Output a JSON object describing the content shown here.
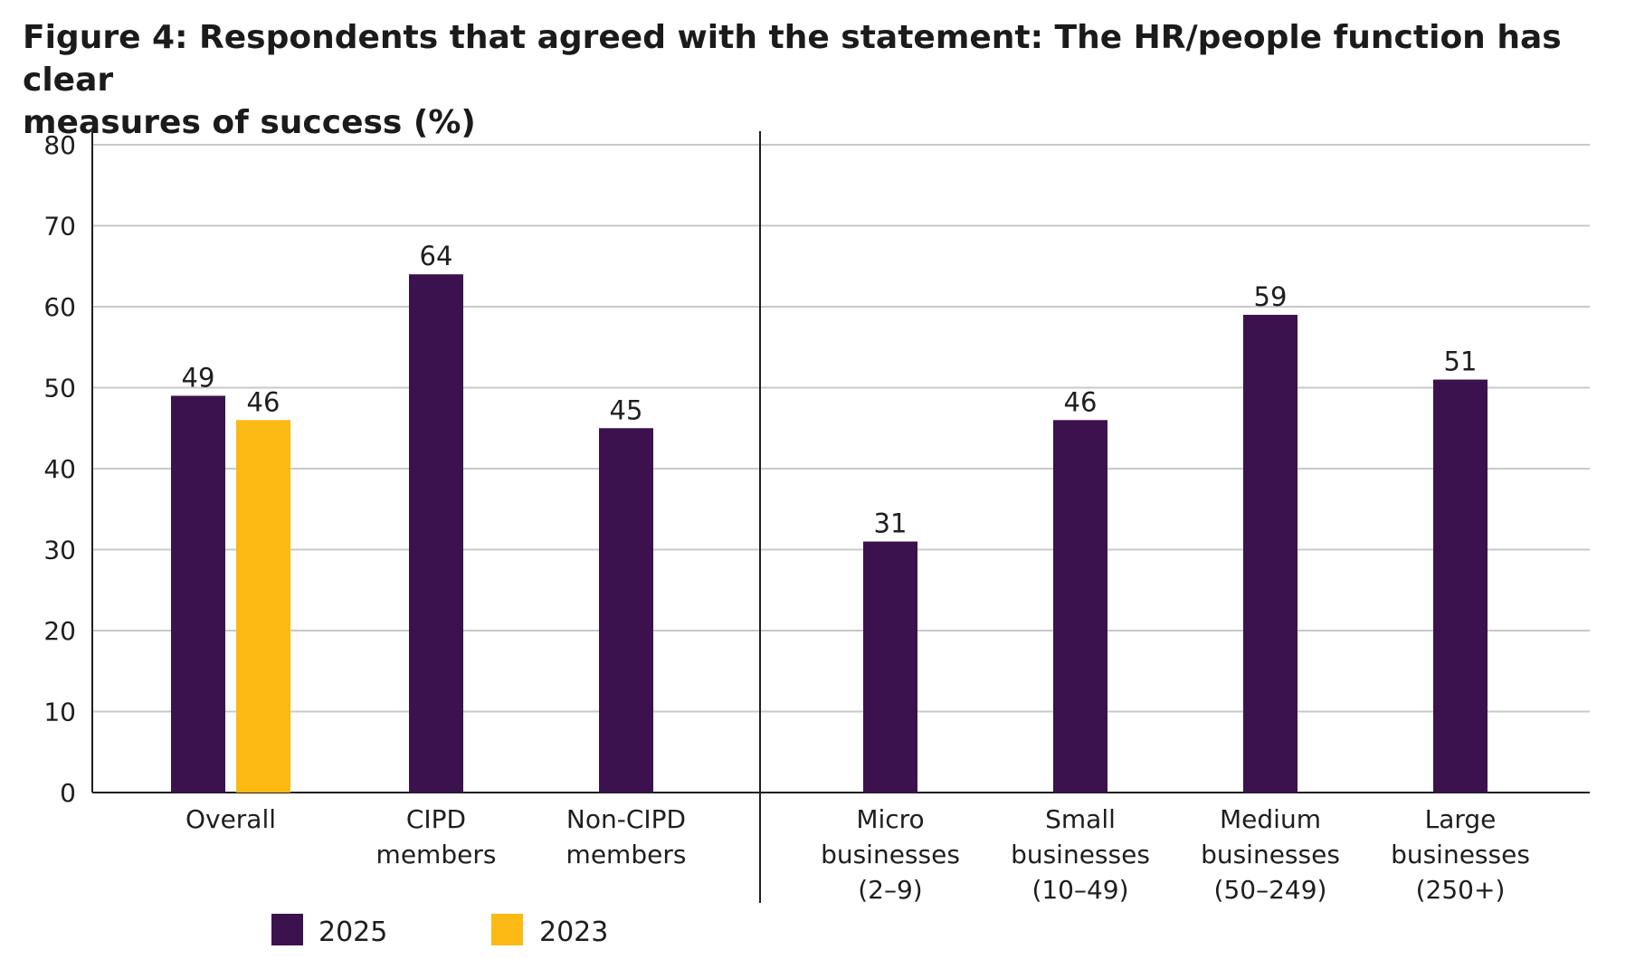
{
  "title_lines": [
    "Figure 4: Respondents that agreed with the statement: The HR/people function has clear",
    "measures of success (%)"
  ],
  "colors": {
    "s2025": "#3b124d",
    "s2023": "#fdb913",
    "grid": "#c8c8c8",
    "axis": "#1e1e1e"
  },
  "chart_data": {
    "type": "bar",
    "title": "Figure 4: Respondents that agreed with the statement: The HR/people function has clear measures of success (%)",
    "xlabel": "",
    "ylabel": "",
    "ylim": [
      0,
      80
    ],
    "yticks": [
      0,
      10,
      20,
      30,
      40,
      50,
      60,
      70,
      80
    ],
    "grid": true,
    "legend_position": "bottom-left",
    "categories": [
      [
        "Overall"
      ],
      [
        "CIPD",
        "members"
      ],
      [
        "Non-CIPD",
        "members"
      ],
      [
        "Micro",
        "businesses",
        "(2–9)"
      ],
      [
        "Small",
        "businesses",
        "(10–49)"
      ],
      [
        "Medium",
        "businesses",
        "(50–249)"
      ],
      [
        "Large",
        "businesses",
        "(250+)"
      ]
    ],
    "series": [
      {
        "name": "2025",
        "values": [
          49,
          64,
          45,
          31,
          46,
          59,
          51
        ]
      },
      {
        "name": "2023",
        "values": [
          46,
          null,
          null,
          null,
          null,
          null,
          null
        ]
      }
    ]
  }
}
